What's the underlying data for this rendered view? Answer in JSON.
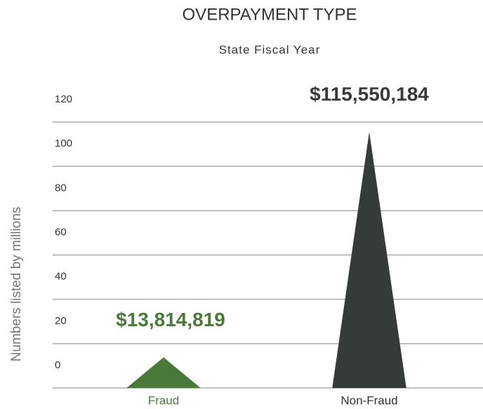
{
  "chart_data": {
    "type": "triangle-bar",
    "title": "OVERPAYMENT TYPE",
    "subtitle": "State Fiscal Year",
    "y_label": "Numbers listed by millions",
    "categories": [
      "Fraud",
      "Non-Fraud"
    ],
    "values": [
      13.814819,
      115.550184
    ],
    "value_labels": [
      "$13,814,819",
      "$115,550,184"
    ],
    "colors": [
      "#4a7a3a",
      "#353c38"
    ],
    "ylim": [
      0,
      120
    ],
    "yticks": [
      0,
      20,
      40,
      60,
      80,
      100,
      120
    ],
    "grid": true
  }
}
